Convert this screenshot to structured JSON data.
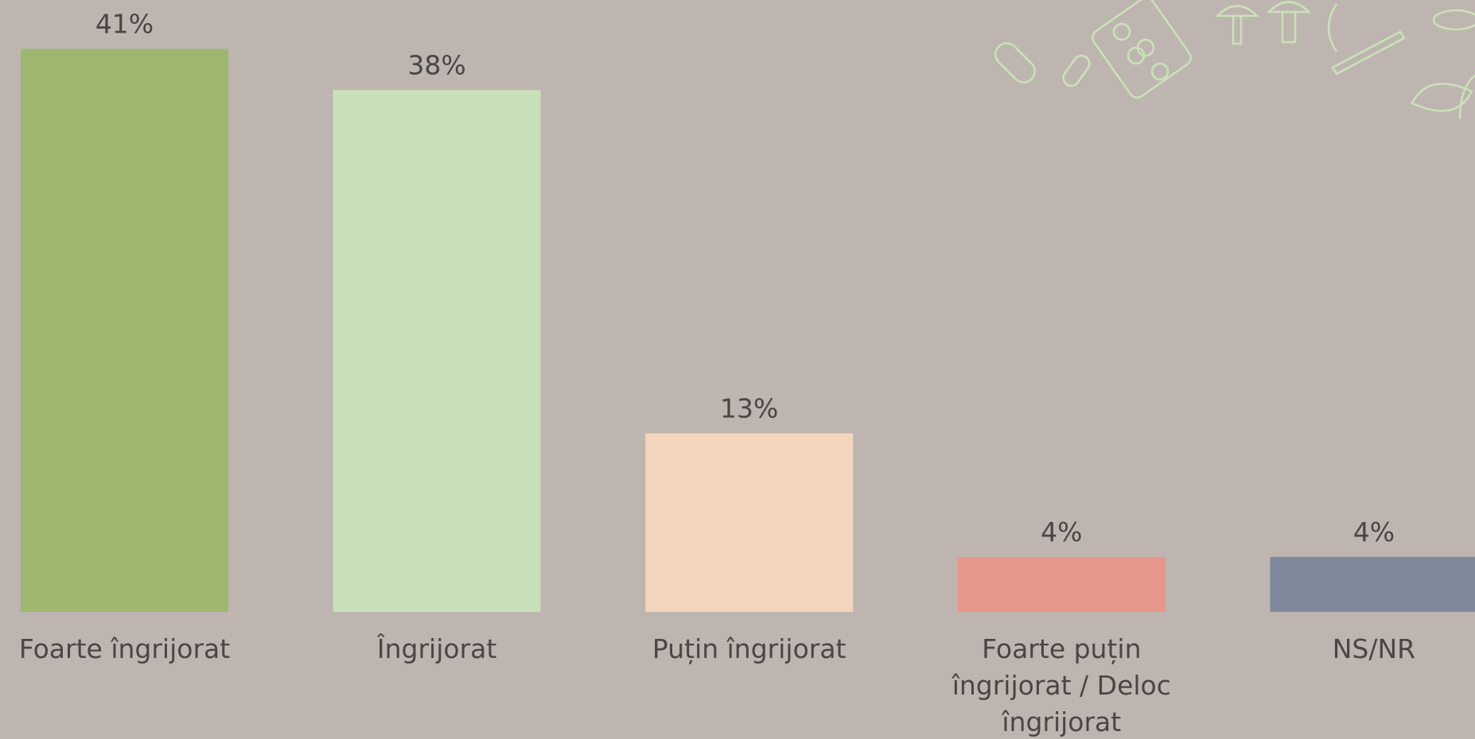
{
  "chart_data": {
    "type": "bar",
    "categories": [
      "Foarte îngrijorat",
      "Îngrijorat",
      "Puțin îngrijorat",
      "Foarte puțin îngrijorat / Deloc îngrijorat",
      "NS/NR"
    ],
    "values": [
      41,
      38,
      13,
      4,
      4
    ],
    "value_labels": [
      "41%",
      "38%",
      "13%",
      "4%",
      "4%"
    ],
    "colors": [
      "#9eb76e",
      "#c7e0b9",
      "#f3d4bd",
      "#e6968a",
      "#7d899b"
    ]
  }
}
